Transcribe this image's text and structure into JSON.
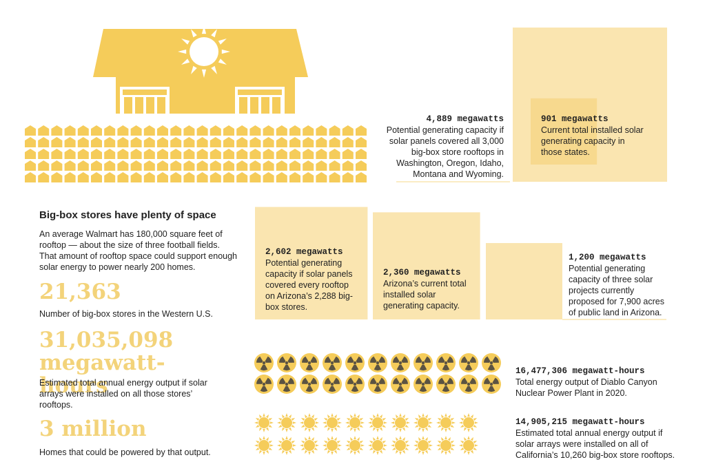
{
  "hero": {
    "heading": "Big-box stores have plenty of space",
    "body": "An average Walmart has 180,000 square feet of rooftop — about the size of three football fields. That amount of rooftop space could support enough solar energy to power nearly 200 homes."
  },
  "stats": [
    {
      "figure": "21,363",
      "caption": "Number of big-box stores in the Western U.S."
    },
    {
      "figure": "31,035,098 megawatt-hours",
      "caption": "Estimated total annual energy output if solar arrays were installed on all those stores’ rooftops."
    },
    {
      "figure": "3 million",
      "caption": "Homes that could be powered by that output."
    }
  ],
  "comparisons": [
    {
      "value": 4889,
      "label": "4,889 megawatts",
      "text": "Potential generating capacity if solar panels covered all 3,000 big-box store rooftops in Washington, Oregon, Idaho, Montana and Wyoming."
    },
    {
      "value": 901,
      "label": "901 megawatts",
      "text": "Current total installed solar generating capacity in those states."
    },
    {
      "value": 2602,
      "label": "2,602 megawatts",
      "text": "Potential generating capacity if solar panels covered every rooftop on Arizona’s 2,288 big-box stores."
    },
    {
      "value": 2360,
      "label": "2,360 megawatts",
      "text": "Arizona’s current total installed solar generating capacity."
    },
    {
      "value": 1200,
      "label": "1,200 megawatts",
      "text": "Potential generating capacity of three solar projects currently proposed for 7,900 acres of public land in Arizona."
    }
  ],
  "energy": [
    {
      "label": "16,477,306 megawatt-hours",
      "text": "Total energy output of Diablo Canyon Nuclear Power Plant in 2020."
    },
    {
      "label": "14,905,215 megawatt-hours",
      "text": "Estimated total annual energy output if solar arrays were installed on all of California’s 10,260 big-box store rooftops."
    }
  ]
}
